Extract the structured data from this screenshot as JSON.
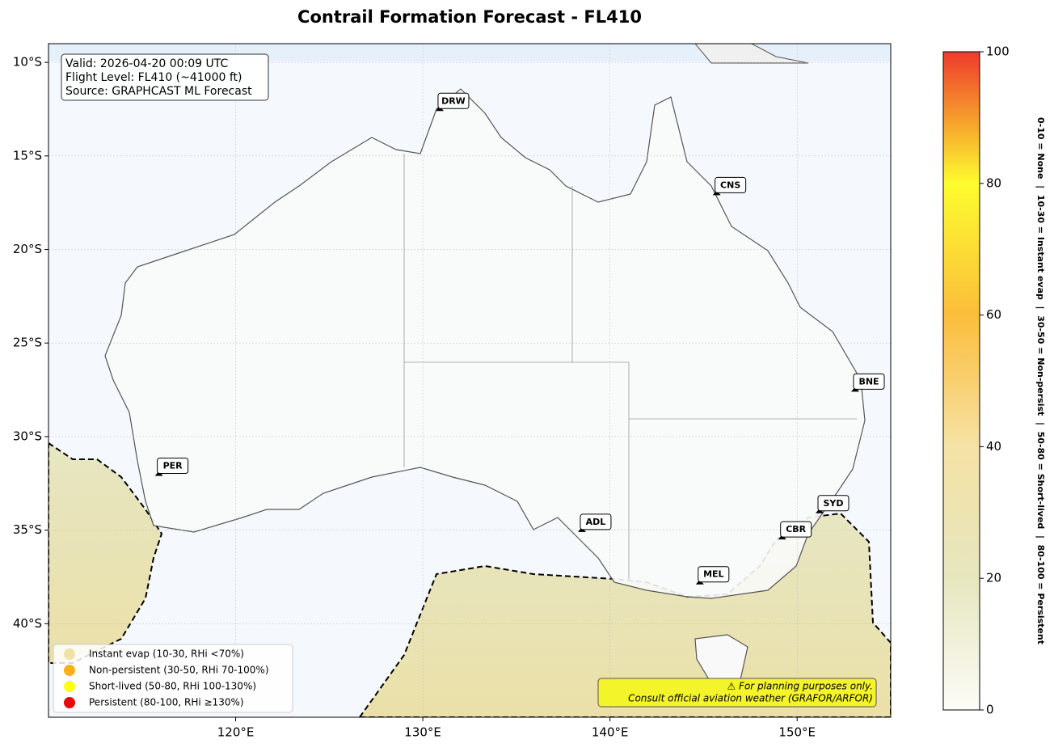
{
  "chart_data": {
    "type": "map",
    "title": "Contrail Formation Forecast - FL410",
    "xlim": [
      110,
      155
    ],
    "ylim": [
      -45,
      -9
    ],
    "xticks": [
      {
        "value": 120,
        "label": "120°E"
      },
      {
        "value": 130,
        "label": "130°E"
      },
      {
        "value": 140,
        "label": "140°E"
      },
      {
        "value": 150,
        "label": "150°E"
      }
    ],
    "yticks": [
      {
        "value": -10,
        "label": "10°S"
      },
      {
        "value": -15,
        "label": "15°S"
      },
      {
        "value": -20,
        "label": "20°S"
      },
      {
        "value": -25,
        "label": "25°S"
      },
      {
        "value": -30,
        "label": "30°S"
      },
      {
        "value": -35,
        "label": "35°S"
      },
      {
        "value": -40,
        "label": "40°S"
      }
    ],
    "grid": true,
    "info": [
      "Valid: 2026-04-20 00:09 UTC",
      "Flight Level: FL410 (~41000 ft)",
      "Source: GRAPHCAST ML Forecast"
    ],
    "airports": [
      {
        "name": "DRW",
        "lon": 130.9,
        "lat": -12.6
      },
      {
        "name": "CNS",
        "lon": 145.7,
        "lat": -17.1
      },
      {
        "name": "BNE",
        "lon": 153.1,
        "lat": -27.6
      },
      {
        "name": "PER",
        "lon": 115.9,
        "lat": -32.1
      },
      {
        "name": "ADL",
        "lon": 138.5,
        "lat": -35.1
      },
      {
        "name": "MEL",
        "lon": 144.8,
        "lat": -37.9
      },
      {
        "name": "CBR",
        "lon": 149.2,
        "lat": -35.5
      },
      {
        "name": "SYD",
        "lon": 151.2,
        "lat": -34.1
      }
    ],
    "legend": [
      {
        "name": "Instant evap (10-30, RHi <70%)",
        "color": "#ede3a8"
      },
      {
        "name": "Non-persistent (30-50, RHi 70-100%)",
        "color": "#fbb116"
      },
      {
        "name": "Short-lived (50-80, RHi 100-130%)",
        "color": "#ffff1a"
      },
      {
        "name": "Persistent (80-100, RHi ≥130%)",
        "color": "#e30a0a"
      }
    ],
    "disclaimer": [
      "⚠ For planning purposes only.",
      "Consult official aviation weather (GRAFOR/ARFOR)"
    ],
    "colorbar": {
      "ylim": [
        0,
        100
      ],
      "yticks": [
        0,
        20,
        40,
        60,
        80,
        100
      ],
      "colors": [
        "#fcfcf7",
        "#e6e6bf",
        "#f5e2a5",
        "#fbbd3b",
        "#fdfc2e",
        "#ee3a2c"
      ],
      "label": "0-10 = None  |  10-30 = Instant evap  |  30-50 = Non-persist  |  50-80 = Short-lived  |  80-100 = Persistent"
    }
  }
}
